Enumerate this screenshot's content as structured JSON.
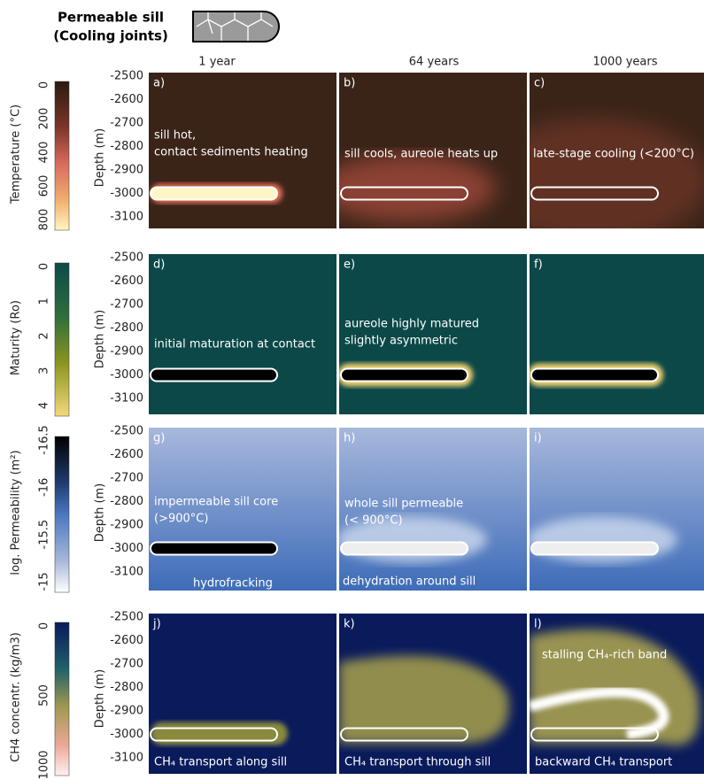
{
  "header": {
    "title": "Permeable sill",
    "subtitle": "(Cooling joints)"
  },
  "columns": [
    "1 year",
    "64 years",
    "1000 years"
  ],
  "depth_axis": {
    "label": "Depth (m)",
    "ticks": [
      "-2500",
      "-2600",
      "-2700",
      "-2800",
      "-2900",
      "-3000",
      "-3100"
    ]
  },
  "rows": [
    {
      "colorbar": {
        "label": "Temperature (°C)",
        "ticks": [
          "0",
          "200",
          "400",
          "600",
          "800"
        ]
      },
      "panels": [
        {
          "letter": "a)",
          "annotations": [
            "sill hot,",
            "contact sediments heating"
          ]
        },
        {
          "letter": "b)",
          "annotations": [
            "sill cools, aureole heats up"
          ]
        },
        {
          "letter": "c)",
          "annotations": [
            "late-stage cooling (<200°C)"
          ]
        }
      ]
    },
    {
      "colorbar": {
        "label": "Maturity (Ro)",
        "ticks": [
          "0",
          "1",
          "2",
          "3",
          "4"
        ]
      },
      "panels": [
        {
          "letter": "d)",
          "annotations": [
            "initial maturation at contact"
          ]
        },
        {
          "letter": "e)",
          "annotations": [
            "aureole highly matured",
            "slightly asymmetric"
          ]
        },
        {
          "letter": "f)",
          "annotations": []
        }
      ]
    },
    {
      "colorbar": {
        "label": "log. Permeability (m²)",
        "ticks": [
          "-16.5",
          "-16",
          "-15.5",
          "-15"
        ]
      },
      "panels": [
        {
          "letter": "g)",
          "annotations": [
            "impermeable sill core",
            "(>900°C)",
            "hydrofracking"
          ]
        },
        {
          "letter": "h)",
          "annotations": [
            "whole sill permeable",
            "(< 900°C)",
            "dehydration around sill"
          ]
        },
        {
          "letter": "i)",
          "annotations": []
        }
      ]
    },
    {
      "colorbar": {
        "label": "CH4 concentr. (kg/m3)",
        "ticks": [
          "0",
          "500",
          "1000"
        ]
      },
      "panels": [
        {
          "letter": "j)",
          "annotations": [
            "CH₄ transport along sill"
          ]
        },
        {
          "letter": "k)",
          "annotations": [
            "CH₄ transport through sill"
          ]
        },
        {
          "letter": "l)",
          "annotations": [
            "stalling CH₄-rich band",
            "backward CH₄ transport"
          ]
        }
      ]
    }
  ]
}
